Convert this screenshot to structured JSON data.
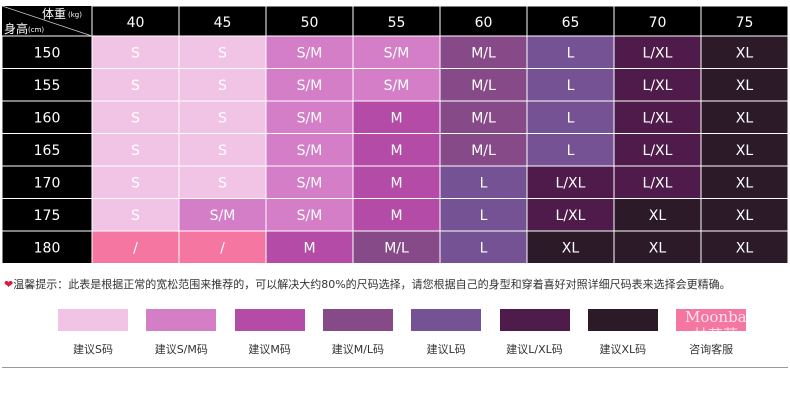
{
  "table": {
    "header_weight": "体重",
    "header_weight_unit": "(kg)",
    "header_height": "身高",
    "header_height_unit": "(cm)",
    "weights": [
      "40",
      "45",
      "50",
      "55",
      "60",
      "65",
      "70",
      "75"
    ],
    "heights": [
      "150",
      "155",
      "160",
      "165",
      "170",
      "175",
      "180"
    ],
    "rows": [
      [
        "S",
        "S",
        "S/M",
        "S/M",
        "M/L",
        "L",
        "L/XL",
        "XL"
      ],
      [
        "S",
        "S",
        "S/M",
        "S/M",
        "M/L",
        "L",
        "L/XL",
        "XL"
      ],
      [
        "S",
        "S",
        "S/M",
        "M",
        "M/L",
        "L",
        "L/XL",
        "XL"
      ],
      [
        "S",
        "S",
        "S/M",
        "M",
        "M/L",
        "L",
        "L/XL",
        "XL"
      ],
      [
        "S",
        "S",
        "S/M",
        "M",
        "L",
        "L/XL",
        "L/XL",
        "XL"
      ],
      [
        "S",
        "S/M",
        "S/M",
        "M",
        "L",
        "L/XL",
        "XL",
        "XL"
      ],
      [
        "/",
        "/",
        "M",
        "M/L",
        "L",
        "XL",
        "XL",
        "XL"
      ]
    ]
  },
  "colors": {
    "header_bg": "#000000",
    "grid_line": "#ffffff",
    "S": "#f1c4e6",
    "S/M": "#d47ec8",
    "M": "#b44ba6",
    "M/L": "#874a88",
    "L": "#745293",
    "L/XL": "#4e1b4a",
    "XL": "#2d1a29",
    "/": "#f576a0"
  },
  "notice": {
    "text": "温馨提示：此表是根据正常的宽松范围来推荐的，可以解决大约80%的尺码选择，请您根据自己的身型和穿着喜好对照详细尺码表来选择会更精确。"
  },
  "legend": [
    {
      "key": "S",
      "label": "建议S码"
    },
    {
      "key": "S/M",
      "label": "建议S/M码"
    },
    {
      "key": "M",
      "label": "建议M码"
    },
    {
      "key": "M/L",
      "label": "建议M/L码"
    },
    {
      "key": "L",
      "label": "建议L码"
    },
    {
      "key": "L/XL",
      "label": "建议L/XL码"
    },
    {
      "key": "XL",
      "label": "建议XL码"
    },
    {
      "key": "/",
      "label": "咨询客服"
    }
  ],
  "watermark": {
    "line1": "Moonba...",
    "line2": "林芭莎"
  }
}
